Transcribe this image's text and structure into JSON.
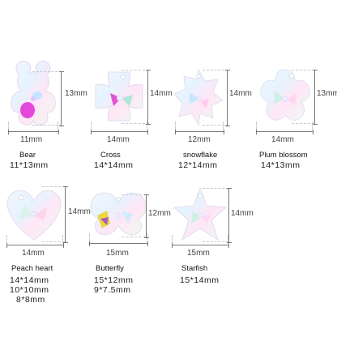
{
  "products": [
    {
      "name": "Bear",
      "sizes": [
        "11*13mm"
      ],
      "width_label": "11mm",
      "height_label": "13mm"
    },
    {
      "name": "Cross",
      "sizes": [
        "14*14mm"
      ],
      "width_label": "14mm",
      "height_label": "14mm"
    },
    {
      "name": "snowflake",
      "sizes": [
        "12*14mm"
      ],
      "width_label": "12mm",
      "height_label": "14mm"
    },
    {
      "name": "Plum blossom",
      "sizes": [
        "14*13mm"
      ],
      "width_label": "14mm",
      "height_label": "13mm"
    },
    {
      "name": "Peach heart",
      "sizes": [
        "14*14mm",
        "10*10mm",
        "8*8mm"
      ],
      "width_label": "14mm",
      "height_label": "14mm"
    },
    {
      "name": "Butterfly",
      "sizes": [
        "15*12mm",
        "9*7.5mm"
      ],
      "width_label": "15mm",
      "height_label": "12mm"
    },
    {
      "name": "Starfish",
      "sizes": [
        "15*14mm"
      ],
      "width_label": "15mm",
      "height_label": "14mm"
    }
  ]
}
